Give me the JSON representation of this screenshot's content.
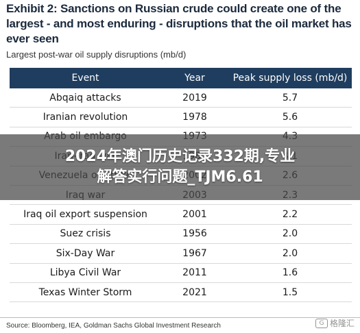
{
  "header": {
    "title": "Exhibit 2: Sanctions on Russian crude could create one of the largest - and most enduring - disruptions that the oil market has ever seen",
    "subtitle": "Largest post-war oil supply disruptions (mb/d)"
  },
  "chart_data": {
    "type": "table",
    "columns": [
      "Event",
      "Year",
      "Peak supply loss (mb/d)"
    ],
    "rows": [
      [
        "Abqaiq attacks",
        "2019",
        "5.7"
      ],
      [
        "Iranian revolution",
        "1978",
        "5.6"
      ],
      [
        "Arab oil embargo",
        "1973",
        "4.3"
      ],
      [
        "Iran-Iraq war",
        "1980",
        "4.1"
      ],
      [
        "Venezuela oil strike",
        "2002",
        "2.6"
      ],
      [
        "Iraq war",
        "2003",
        "2.3"
      ],
      [
        "Iraq oil export suspension",
        "2001",
        "2.2"
      ],
      [
        "Suez crisis",
        "1956",
        "2.0"
      ],
      [
        "Six-Day War",
        "1967",
        "2.0"
      ],
      [
        "Libya Civil War",
        "2011",
        "1.6"
      ],
      [
        "Texas Winter Storm",
        "2021",
        "1.5"
      ]
    ]
  },
  "footer": {
    "source": "Source: Bloomberg, IEA, Goldman Sachs Global Investment Research"
  },
  "overlay": {
    "line1": "2024年澳门历史记录332期,专业",
    "line2": "解答实行问题_TJM6.61"
  },
  "watermark": {
    "logo": "G",
    "text": "格隆汇"
  },
  "colors": {
    "header_bg": "#1f3d5e",
    "title": "#1b2a3c"
  }
}
